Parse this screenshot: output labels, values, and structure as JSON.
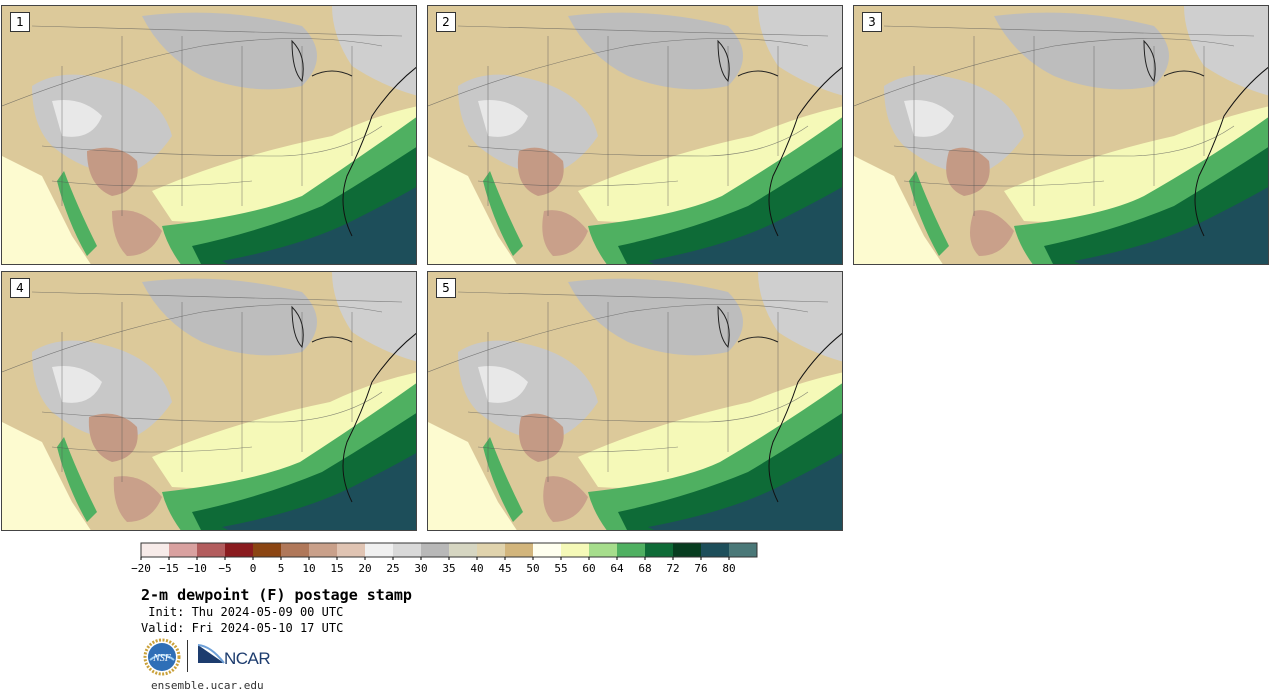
{
  "panels": [
    {
      "label": "1"
    },
    {
      "label": "2"
    },
    {
      "label": "3"
    },
    {
      "label": "4"
    },
    {
      "label": "5"
    }
  ],
  "colorbar": {
    "ticks": [
      "-20",
      "-15",
      "-10",
      "-5",
      "0",
      "5",
      "10",
      "15",
      "20",
      "25",
      "30",
      "35",
      "40",
      "45",
      "50",
      "55",
      "60",
      "64",
      "68",
      "72",
      "76",
      "80"
    ],
    "colors": [
      "#f7ebe9",
      "#d9a1a0",
      "#b25c5d",
      "#8a1b1f",
      "#8b4513",
      "#b0785a",
      "#c9a08a",
      "#e0c4b3",
      "#f0f0f0",
      "#d9d9d9",
      "#b8b8b8",
      "#d6d6c2",
      "#e0d3ad",
      "#d2b57c",
      "#ffffef",
      "#f5f9b8",
      "#a6dd8c",
      "#4fb061",
      "#0e6b37",
      "#073d20",
      "#1d4e5a",
      "#4a7878"
    ]
  },
  "title": "2-m dewpoint (F) postage stamp",
  "init": " Init: Thu 2024-05-09 00 UTC",
  "valid": "Valid: Fri 2024-05-10 17 UTC",
  "logos": {
    "nsf": "NSF",
    "ncar": "NCAR"
  },
  "website": "ensemble.ucar.edu"
}
